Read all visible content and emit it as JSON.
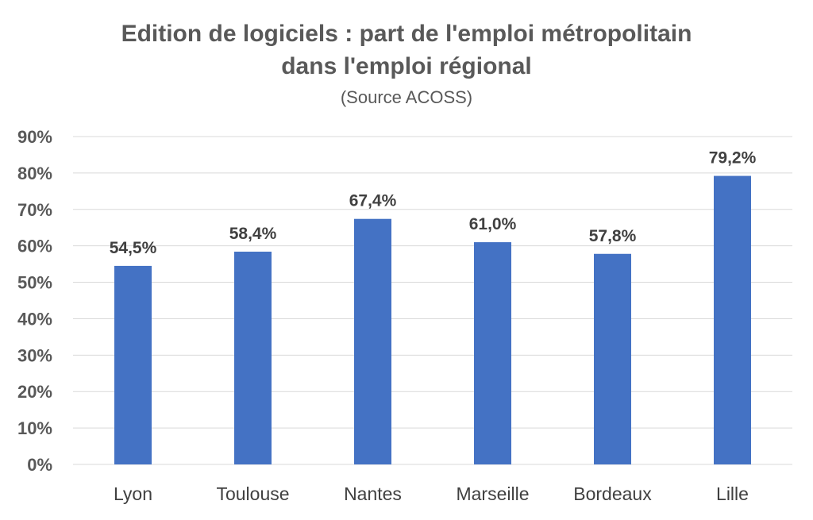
{
  "chart_data": {
    "type": "bar",
    "title_line1": "Edition de logiciels : part de l'emploi métropolitain",
    "title_line2": "dans l'emploi régional",
    "subtitle": "(Source ACOSS)",
    "categories": [
      "Lyon",
      "Toulouse",
      "Nantes",
      "Marseille",
      "Bordeaux",
      "Lille"
    ],
    "values": [
      54.5,
      58.4,
      67.4,
      61.0,
      57.8,
      79.2
    ],
    "data_labels": [
      "54,5%",
      "58,4%",
      "67,4%",
      "61,0%",
      "57,8%",
      "79,2%"
    ],
    "yticks": [
      "0%",
      "10%",
      "20%",
      "30%",
      "40%",
      "50%",
      "60%",
      "70%",
      "80%",
      "90%"
    ],
    "ylim": [
      0,
      90
    ],
    "grid": true,
    "legend": "none",
    "bar_color": "#4472c4"
  }
}
